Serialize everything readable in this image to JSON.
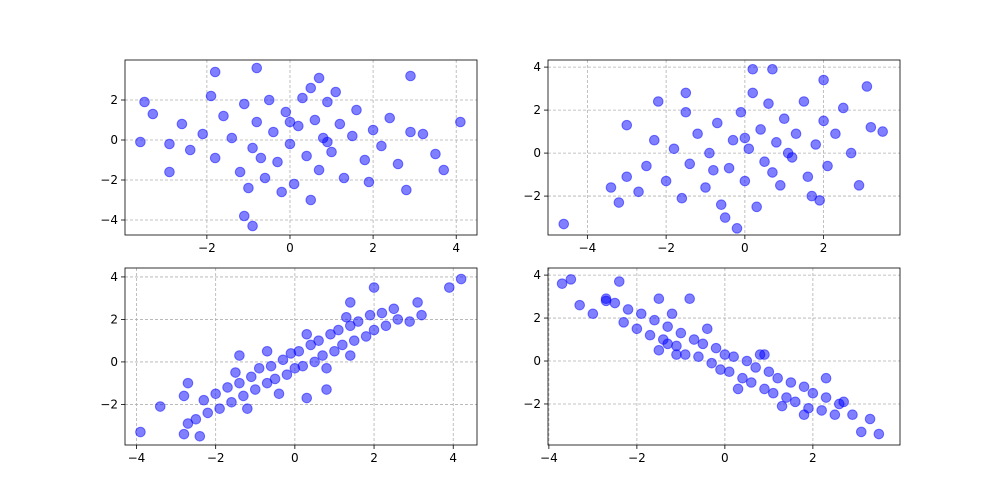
{
  "chart_data": [
    {
      "type": "scatter",
      "color": "#0000ff",
      "alpha": 0.5,
      "grid": true,
      "xlim": [
        -3.97,
        4.5
      ],
      "ylim": [
        -4.75,
        4
      ],
      "xticks": [
        {
          "value": -2,
          "label": "−2"
        },
        0,
        2,
        4
      ],
      "yticks": [
        {
          "value": -4,
          "label": "−4"
        },
        {
          "value": -2,
          "label": "−2"
        },
        0,
        2
      ],
      "x": [
        -2.1,
        -1.8,
        -1.6,
        -1.4,
        -1.2,
        -1.1,
        -0.9,
        -0.8,
        -0.6,
        -0.5,
        -0.4,
        -0.3,
        -0.1,
        0,
        0.1,
        0.2,
        0.3,
        0.4,
        0.6,
        0.7,
        0.8,
        0.9,
        1.0,
        1.2,
        1.3,
        1.5,
        1.6,
        1.8,
        2.0,
        2.2,
        2.4,
        -2.4,
        -2.6,
        2.6,
        -1.9,
        1.9,
        -0.2,
        0.5,
        -1.0,
        1.1,
        -2.9,
        2.9,
        0.0,
        -0.7,
        0.9,
        -3.5,
        -3.6,
        -2.9,
        -1.8,
        -0.8,
        -1.1,
        -0.9,
        3.7,
        4.1,
        2.9,
        2.8,
        3.2,
        0.7,
        0.5,
        3.5,
        -3.3
      ],
      "values": [
        0.3,
        -0.9,
        1.2,
        0.1,
        -1.6,
        1.8,
        -0.4,
        0.9,
        -1.9,
        2.0,
        0.4,
        -1.1,
        1.4,
        -0.2,
        -2.2,
        0.7,
        2.1,
        -0.8,
        1.0,
        -1.5,
        0.1,
        1.9,
        -0.6,
        0.8,
        -1.9,
        0.2,
        1.5,
        -1.0,
        0.5,
        -0.3,
        1.1,
        -0.5,
        0.8,
        -1.2,
        2.2,
        -2.1,
        -2.6,
        2.6,
        -2.4,
        2.4,
        -0.2,
        0.4,
        0.9,
        -0.9,
        -0.1,
        1.9,
        -0.1,
        -1.6,
        3.4,
        3.6,
        -3.8,
        -4.3,
        -1.5,
        0.9,
        3.2,
        -2.5,
        0.3,
        3.1,
        -3.0,
        -0.7,
        1.3
      ]
    },
    {
      "type": "scatter",
      "color": "#0000ff",
      "alpha": 0.5,
      "grid": true,
      "xlim": [
        -5.0,
        3.94
      ],
      "ylim": [
        -3.81,
        4.33
      ],
      "xticks": [
        {
          "value": -4,
          "label": "−4"
        },
        {
          "value": -2,
          "label": "−2"
        },
        0,
        2
      ],
      "yticks": [
        {
          "value": -2,
          "label": "−2"
        },
        0,
        2,
        4
      ],
      "x": [
        -2.0,
        -1.8,
        -1.6,
        -1.4,
        -1.2,
        -1.0,
        -0.9,
        -0.7,
        -0.6,
        -0.4,
        -0.3,
        -0.1,
        0,
        0.1,
        0.3,
        0.4,
        0.5,
        0.6,
        0.8,
        0.9,
        1.0,
        1.2,
        1.3,
        1.5,
        1.6,
        1.8,
        2.0,
        2.1,
        2.3,
        2.5,
        -2.3,
        -2.5,
        -1.5,
        1.7,
        0.2,
        -0.5,
        2.7,
        -2.7,
        0.0,
        -0.8,
        1.1,
        0.7,
        -4.6,
        -3.0,
        -3.4,
        -3.0,
        -2.2,
        -1.5,
        0.2,
        0.7,
        2.0,
        3.1,
        3.5,
        3.2,
        -0.2,
        2.9,
        1.9,
        -3.2
      ],
      "values": [
        -1.3,
        0.2,
        -2.1,
        -0.5,
        0.9,
        -1.6,
        0.0,
        1.4,
        -2.4,
        -0.7,
        0.6,
        1.9,
        -1.3,
        0.2,
        -2.5,
        1.1,
        -0.4,
        2.3,
        0.5,
        -1.5,
        1.6,
        -0.2,
        0.9,
        2.4,
        -1.1,
        0.4,
        1.5,
        -0.6,
        0.9,
        2.1,
        0.6,
        -0.6,
        1.9,
        -2.0,
        2.8,
        -3.0,
        0.0,
        -1.8,
        0.7,
        -0.8,
        0.0,
        -0.9,
        -3.3,
        -1.1,
        -1.6,
        1.3,
        2.4,
        2.8,
        3.9,
        3.9,
        3.4,
        3.1,
        1.0,
        1.2,
        -3.5,
        -1.5,
        -2.2,
        -2.3
      ]
    },
    {
      "type": "scatter",
      "color": "#0000ff",
      "alpha": 0.5,
      "grid": true,
      "xlim": [
        -4.29,
        4.6
      ],
      "ylim": [
        -3.91,
        4.42
      ],
      "xticks": [
        {
          "value": -4,
          "label": "−4"
        },
        {
          "value": -2,
          "label": "−2"
        },
        0,
        2,
        4
      ],
      "yticks": [
        {
          "value": -2,
          "label": "−2"
        },
        0,
        2,
        4
      ],
      "x": [
        -2.5,
        -2.3,
        -2.2,
        -2.0,
        -1.9,
        -1.7,
        -1.6,
        -1.4,
        -1.3,
        -1.1,
        -1.0,
        -0.9,
        -0.7,
        -0.6,
        -0.5,
        -0.3,
        -0.2,
        -0.1,
        0,
        0.1,
        0.2,
        0.4,
        0.5,
        0.6,
        0.7,
        0.9,
        1.0,
        1.1,
        1.2,
        1.4,
        1.5,
        1.6,
        1.8,
        1.9,
        2.0,
        2.2,
        2.3,
        2.5,
        2.6,
        -1.5,
        1.3,
        0.3,
        -0.4,
        -1.2,
        0.8,
        -2.7,
        -3.9,
        -3.4,
        -2.8,
        -2.4,
        -2.8,
        -2.7,
        -1.4,
        -0.7,
        0.8,
        1.4,
        2.0,
        2.9,
        3.2,
        3.1,
        3.9,
        4.2,
        0.3,
        1.4
      ],
      "values": [
        -2.7,
        -1.8,
        -2.4,
        -1.5,
        -2.2,
        -1.2,
        -1.9,
        -1.0,
        -1.6,
        -0.7,
        -1.3,
        -0.3,
        -1.0,
        -0.2,
        -0.8,
        0.1,
        -0.6,
        0.4,
        -0.3,
        0.5,
        -0.2,
        0.8,
        0.0,
        1.0,
        0.3,
        1.3,
        0.5,
        1.5,
        0.8,
        1.7,
        1.0,
        1.9,
        1.2,
        2.2,
        1.5,
        2.3,
        1.7,
        2.5,
        2.0,
        -0.5,
        2.1,
        1.3,
        -1.5,
        -2.2,
        -0.3,
        -2.9,
        -3.3,
        -2.1,
        -3.4,
        -3.5,
        -1.6,
        -1.0,
        0.3,
        0.5,
        -1.3,
        2.8,
        3.5,
        1.9,
        2.2,
        2.8,
        3.5,
        3.9,
        -1.7,
        0.3
      ]
    },
    {
      "type": "scatter",
      "color": "#0000ff",
      "alpha": 0.5,
      "grid": true,
      "xlim": [
        -4.02,
        3.98
      ],
      "ylim": [
        -3.91,
        4.33
      ],
      "xticks": [
        {
          "value": -4,
          "label": "−4"
        },
        {
          "value": -2,
          "label": "−2"
        },
        0,
        2
      ],
      "yticks": [
        {
          "value": -2,
          "label": "−2"
        },
        0,
        2,
        4
      ],
      "x": [
        -2.5,
        -2.3,
        -2.2,
        -2.0,
        -1.9,
        -1.7,
        -1.6,
        -1.4,
        -1.3,
        -1.1,
        -1.0,
        -0.9,
        -0.7,
        -0.6,
        -0.5,
        -0.3,
        -0.2,
        -0.1,
        0,
        0.1,
        0.2,
        0.4,
        0.5,
        0.6,
        0.7,
        0.9,
        1.0,
        1.1,
        1.2,
        1.4,
        1.5,
        1.6,
        1.8,
        1.9,
        2.0,
        2.2,
        2.3,
        2.5,
        2.6,
        -1.5,
        1.3,
        0.3,
        -0.4,
        -1.2,
        0.8,
        -2.7,
        -3.7,
        -3.5,
        -3.3,
        -2.4,
        -3.0,
        -2.7,
        -1.5,
        -0.8,
        -1.3,
        1.8,
        2.7,
        2.9,
        3.1,
        3.5,
        3.3,
        0.9,
        2.3,
        -1.1
      ],
      "values": [
        2.7,
        1.8,
        2.4,
        1.5,
        2.2,
        1.2,
        1.9,
        1.0,
        1.6,
        0.7,
        1.3,
        0.3,
        1.0,
        0.2,
        0.8,
        -0.1,
        0.6,
        -0.4,
        0.3,
        -0.5,
        0.2,
        -0.8,
        0.0,
        -1.0,
        -0.3,
        -1.3,
        -0.5,
        -1.5,
        -0.8,
        -1.7,
        -1.0,
        -1.9,
        -1.2,
        -2.2,
        -1.5,
        -2.3,
        -1.7,
        -2.5,
        -2.0,
        0.5,
        -2.1,
        -1.3,
        1.5,
        2.2,
        0.3,
        2.9,
        3.6,
        3.8,
        2.6,
        3.7,
        2.2,
        2.8,
        2.9,
        2.9,
        0.8,
        -2.5,
        -1.9,
        -2.5,
        -3.3,
        -3.4,
        -2.7,
        0.3,
        -0.8,
        0.3
      ]
    }
  ]
}
